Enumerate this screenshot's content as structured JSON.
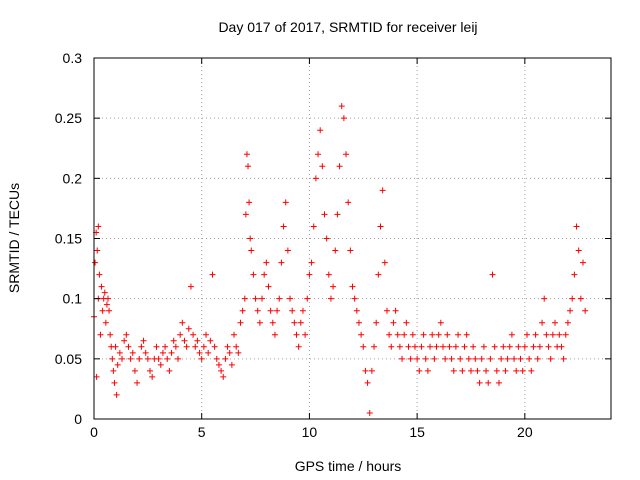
{
  "chart_data": {
    "type": "scatter",
    "title": "Day 017 of 2017, SRMTID for receiver leij",
    "xlabel": "GPS time / hours",
    "ylabel": "SRMTID / TECUs",
    "xlim": [
      0,
      24
    ],
    "ylim": [
      0,
      0.3
    ],
    "xticks": [
      0,
      5,
      10,
      15,
      20
    ],
    "xtick_labels": [
      "0",
      "5",
      "10",
      "15",
      "20"
    ],
    "yticks": [
      0,
      0.05,
      0.1,
      0.15,
      0.2,
      0.25,
      0.3
    ],
    "ytick_labels": [
      "0",
      "0.05",
      "0.1",
      "0.15",
      "0.2",
      "0.25",
      "0.3"
    ],
    "grid": true,
    "marker": "+",
    "color": "#ff0000",
    "series": [
      {
        "name": "SRMTID",
        "points": [
          [
            0.0,
            0.085
          ],
          [
            0.05,
            0.13
          ],
          [
            0.1,
            0.155
          ],
          [
            0.12,
            0.035
          ],
          [
            0.15,
            0.14
          ],
          [
            0.2,
            0.16
          ],
          [
            0.2,
            0.1
          ],
          [
            0.25,
            0.12
          ],
          [
            0.3,
            0.07
          ],
          [
            0.35,
            0.11
          ],
          [
            0.4,
            0.09
          ],
          [
            0.45,
            0.1
          ],
          [
            0.5,
            0.105
          ],
          [
            0.55,
            0.08
          ],
          [
            0.6,
            0.095
          ],
          [
            0.65,
            0.1
          ],
          [
            0.7,
            0.09
          ],
          [
            0.75,
            0.07
          ],
          [
            0.8,
            0.06
          ],
          [
            0.85,
            0.05
          ],
          [
            0.9,
            0.04
          ],
          [
            0.95,
            0.03
          ],
          [
            1.0,
            0.06
          ],
          [
            1.05,
            0.02
          ],
          [
            1.1,
            0.045
          ],
          [
            1.2,
            0.055
          ],
          [
            1.3,
            0.05
          ],
          [
            1.4,
            0.065
          ],
          [
            1.5,
            0.07
          ],
          [
            1.6,
            0.06
          ],
          [
            1.7,
            0.05
          ],
          [
            1.8,
            0.055
          ],
          [
            1.9,
            0.04
          ],
          [
            2.0,
            0.03
          ],
          [
            2.1,
            0.05
          ],
          [
            2.2,
            0.06
          ],
          [
            2.3,
            0.065
          ],
          [
            2.4,
            0.055
          ],
          [
            2.5,
            0.05
          ],
          [
            2.6,
            0.04
          ],
          [
            2.7,
            0.035
          ],
          [
            2.8,
            0.05
          ],
          [
            2.9,
            0.06
          ],
          [
            3.0,
            0.05
          ],
          [
            3.1,
            0.045
          ],
          [
            3.2,
            0.055
          ],
          [
            3.3,
            0.06
          ],
          [
            3.4,
            0.05
          ],
          [
            3.5,
            0.04
          ],
          [
            3.6,
            0.055
          ],
          [
            3.7,
            0.065
          ],
          [
            3.8,
            0.06
          ],
          [
            3.9,
            0.05
          ],
          [
            4.0,
            0.07
          ],
          [
            4.1,
            0.08
          ],
          [
            4.2,
            0.065
          ],
          [
            4.3,
            0.06
          ],
          [
            4.4,
            0.075
          ],
          [
            4.5,
            0.11
          ],
          [
            4.6,
            0.07
          ],
          [
            4.7,
            0.06
          ],
          [
            4.8,
            0.065
          ],
          [
            4.9,
            0.055
          ],
          [
            5.0,
            0.05
          ],
          [
            5.1,
            0.06
          ],
          [
            5.2,
            0.07
          ],
          [
            5.3,
            0.055
          ],
          [
            5.4,
            0.065
          ],
          [
            5.5,
            0.12
          ],
          [
            5.6,
            0.06
          ],
          [
            5.7,
            0.05
          ],
          [
            5.8,
            0.045
          ],
          [
            5.9,
            0.04
          ],
          [
            6.0,
            0.035
          ],
          [
            6.1,
            0.05
          ],
          [
            6.2,
            0.06
          ],
          [
            6.3,
            0.055
          ],
          [
            6.4,
            0.045
          ],
          [
            6.5,
            0.07
          ],
          [
            6.6,
            0.06
          ],
          [
            6.7,
            0.055
          ],
          [
            6.8,
            0.08
          ],
          [
            6.9,
            0.09
          ],
          [
            7.0,
            0.1
          ],
          [
            7.05,
            0.17
          ],
          [
            7.1,
            0.22
          ],
          [
            7.15,
            0.21
          ],
          [
            7.2,
            0.18
          ],
          [
            7.25,
            0.15
          ],
          [
            7.3,
            0.14
          ],
          [
            7.4,
            0.12
          ],
          [
            7.5,
            0.1
          ],
          [
            7.6,
            0.09
          ],
          [
            7.7,
            0.08
          ],
          [
            7.8,
            0.1
          ],
          [
            7.9,
            0.12
          ],
          [
            8.0,
            0.13
          ],
          [
            8.1,
            0.11
          ],
          [
            8.2,
            0.09
          ],
          [
            8.3,
            0.08
          ],
          [
            8.4,
            0.07
          ],
          [
            8.5,
            0.09
          ],
          [
            8.6,
            0.1
          ],
          [
            8.7,
            0.13
          ],
          [
            8.8,
            0.16
          ],
          [
            8.9,
            0.18
          ],
          [
            9.0,
            0.14
          ],
          [
            9.1,
            0.1
          ],
          [
            9.2,
            0.09
          ],
          [
            9.3,
            0.08
          ],
          [
            9.4,
            0.07
          ],
          [
            9.5,
            0.06
          ],
          [
            9.6,
            0.08
          ],
          [
            9.7,
            0.09
          ],
          [
            9.8,
            0.07
          ],
          [
            9.9,
            0.1
          ],
          [
            10.0,
            0.12
          ],
          [
            10.1,
            0.13
          ],
          [
            10.2,
            0.16
          ],
          [
            10.3,
            0.2
          ],
          [
            10.4,
            0.22
          ],
          [
            10.5,
            0.24
          ],
          [
            10.6,
            0.21
          ],
          [
            10.7,
            0.17
          ],
          [
            10.8,
            0.15
          ],
          [
            10.9,
            0.12
          ],
          [
            11.0,
            0.1
          ],
          [
            11.1,
            0.11
          ],
          [
            11.2,
            0.14
          ],
          [
            11.3,
            0.17
          ],
          [
            11.4,
            0.21
          ],
          [
            11.5,
            0.26
          ],
          [
            11.6,
            0.25
          ],
          [
            11.7,
            0.22
          ],
          [
            11.8,
            0.18
          ],
          [
            11.9,
            0.14
          ],
          [
            12.0,
            0.11
          ],
          [
            12.1,
            0.1
          ],
          [
            12.2,
            0.09
          ],
          [
            12.3,
            0.08
          ],
          [
            12.4,
            0.07
          ],
          [
            12.5,
            0.06
          ],
          [
            12.6,
            0.04
          ],
          [
            12.7,
            0.03
          ],
          [
            12.8,
            0.005
          ],
          [
            12.9,
            0.04
          ],
          [
            13.0,
            0.06
          ],
          [
            13.1,
            0.08
          ],
          [
            13.2,
            0.12
          ],
          [
            13.3,
            0.16
          ],
          [
            13.4,
            0.19
          ],
          [
            13.5,
            0.13
          ],
          [
            13.6,
            0.09
          ],
          [
            13.7,
            0.07
          ],
          [
            13.8,
            0.06
          ],
          [
            13.9,
            0.08
          ],
          [
            14.0,
            0.09
          ],
          [
            14.1,
            0.07
          ],
          [
            14.2,
            0.06
          ],
          [
            14.3,
            0.05
          ],
          [
            14.4,
            0.07
          ],
          [
            14.5,
            0.08
          ],
          [
            14.6,
            0.06
          ],
          [
            14.7,
            0.05
          ],
          [
            14.8,
            0.07
          ],
          [
            14.9,
            0.06
          ],
          [
            15.0,
            0.05
          ],
          [
            15.1,
            0.04
          ],
          [
            15.2,
            0.06
          ],
          [
            15.3,
            0.07
          ],
          [
            15.4,
            0.05
          ],
          [
            15.5,
            0.04
          ],
          [
            15.6,
            0.06
          ],
          [
            15.7,
            0.07
          ],
          [
            15.8,
            0.05
          ],
          [
            15.9,
            0.06
          ],
          [
            16.0,
            0.07
          ],
          [
            16.1,
            0.08
          ],
          [
            16.2,
            0.06
          ],
          [
            16.3,
            0.05
          ],
          [
            16.4,
            0.07
          ],
          [
            16.5,
            0.06
          ],
          [
            16.6,
            0.05
          ],
          [
            16.7,
            0.04
          ],
          [
            16.8,
            0.06
          ],
          [
            16.9,
            0.07
          ],
          [
            17.0,
            0.05
          ],
          [
            17.1,
            0.04
          ],
          [
            17.2,
            0.06
          ],
          [
            17.3,
            0.07
          ],
          [
            17.4,
            0.05
          ],
          [
            17.5,
            0.04
          ],
          [
            17.6,
            0.06
          ],
          [
            17.7,
            0.05
          ],
          [
            17.8,
            0.04
          ],
          [
            17.9,
            0.03
          ],
          [
            18.0,
            0.05
          ],
          [
            18.1,
            0.06
          ],
          [
            18.2,
            0.04
          ],
          [
            18.3,
            0.03
          ],
          [
            18.4,
            0.05
          ],
          [
            18.5,
            0.12
          ],
          [
            18.6,
            0.06
          ],
          [
            18.7,
            0.04
          ],
          [
            18.8,
            0.03
          ],
          [
            18.9,
            0.05
          ],
          [
            19.0,
            0.06
          ],
          [
            19.1,
            0.04
          ],
          [
            19.2,
            0.05
          ],
          [
            19.3,
            0.06
          ],
          [
            19.4,
            0.07
          ],
          [
            19.5,
            0.05
          ],
          [
            19.6,
            0.04
          ],
          [
            19.7,
            0.06
          ],
          [
            19.8,
            0.05
          ],
          [
            19.9,
            0.04
          ],
          [
            20.0,
            0.06
          ],
          [
            20.1,
            0.07
          ],
          [
            20.2,
            0.05
          ],
          [
            20.3,
            0.04
          ],
          [
            20.4,
            0.06
          ],
          [
            20.5,
            0.07
          ],
          [
            20.6,
            0.05
          ],
          [
            20.7,
            0.06
          ],
          [
            20.8,
            0.08
          ],
          [
            20.9,
            0.1
          ],
          [
            21.0,
            0.07
          ],
          [
            21.1,
            0.06
          ],
          [
            21.2,
            0.05
          ],
          [
            21.3,
            0.07
          ],
          [
            21.4,
            0.08
          ],
          [
            21.5,
            0.06
          ],
          [
            21.6,
            0.07
          ],
          [
            21.7,
            0.06
          ],
          [
            21.8,
            0.05
          ],
          [
            21.9,
            0.07
          ],
          [
            22.0,
            0.08
          ],
          [
            22.1,
            0.09
          ],
          [
            22.2,
            0.1
          ],
          [
            22.3,
            0.12
          ],
          [
            22.4,
            0.16
          ],
          [
            22.5,
            0.14
          ],
          [
            22.6,
            0.1
          ],
          [
            22.7,
            0.13
          ],
          [
            22.8,
            0.09
          ]
        ]
      }
    ]
  }
}
